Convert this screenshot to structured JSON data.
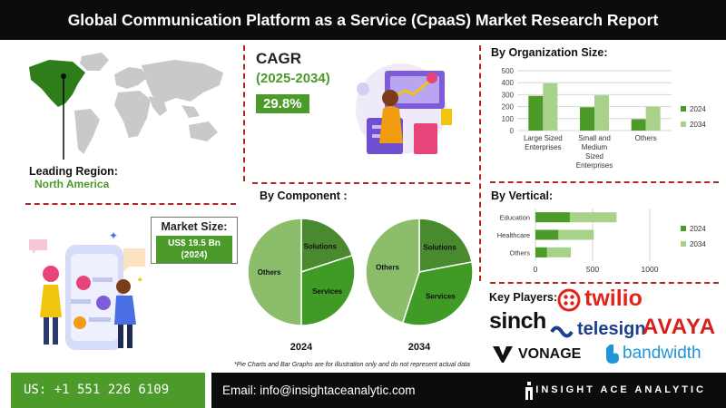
{
  "title": "Global Communication Platform as a Service (CpaaS) Market Research Report",
  "region": {
    "label": "Leading Region:",
    "value": "North America"
  },
  "cagr": {
    "label": "CAGR",
    "period": "(2025-2034)",
    "value": "29.8%"
  },
  "market_size": {
    "label": "Market Size:",
    "value_line1": "US$ 19.5 Bn",
    "value_line2": "(2024)"
  },
  "colors": {
    "dark_green": "#4b9a2a",
    "light_green": "#a8d18a",
    "black": "#0c0c0c",
    "divider_red": "#b32424"
  },
  "chart_data": [
    {
      "type": "bar",
      "title": "By Organization Size:",
      "categories": [
        "Large Sized Enterprises",
        "Small and Medium Sized Enterprises",
        "Others"
      ],
      "category_lines": [
        [
          "Large Sized",
          "Enterprises"
        ],
        [
          "Small and",
          "Medium",
          "Sized",
          "Enterprises"
        ],
        [
          "Others"
        ]
      ],
      "series": [
        {
          "name": "2024",
          "values": [
            290,
            195,
            95
          ]
        },
        {
          "name": "2034",
          "values": [
            395,
            295,
            200
          ]
        }
      ],
      "ylim": [
        0,
        500
      ],
      "yticks": [
        0,
        100,
        200,
        300,
        400,
        500
      ],
      "grid": true,
      "legend": "right"
    },
    {
      "type": "pie",
      "title": "By Component :",
      "subtitle": "2024",
      "slices": [
        {
          "label": "Solutions",
          "value": 20
        },
        {
          "label": "Services",
          "value": 30
        },
        {
          "label": "Others",
          "value": 50
        }
      ]
    },
    {
      "type": "pie",
      "subtitle": "2034",
      "slices": [
        {
          "label": "Solutions",
          "value": 22
        },
        {
          "label": "Services",
          "value": 33
        },
        {
          "label": "Others",
          "value": 45
        }
      ]
    },
    {
      "type": "bar",
      "orientation": "horizontal",
      "title": "By Vertical:",
      "categories": [
        "Education",
        "Healthcare",
        "Others"
      ],
      "series": [
        {
          "name": "2024",
          "values": [
            300,
            200,
            100
          ]
        },
        {
          "name": "2034",
          "values": [
            710,
            510,
            310
          ]
        }
      ],
      "xlim": [
        0,
        1000
      ],
      "xticks": [
        0,
        500,
        1000
      ],
      "grid": true,
      "legend": "right"
    }
  ],
  "key_players": {
    "title": "Key Players:",
    "companies": [
      "twilio",
      "sinch",
      "telesign",
      "AVAYA",
      "VONAGE",
      "bandwidth"
    ]
  },
  "footnote": "*Pie Charts and Bar Graphs are for illustration only and do not represent actual data",
  "footer": {
    "phone": "US: +1 551 226 6109",
    "email": "Email: info@insightaceanalytic.com",
    "brand": "INSIGHT ACE ANALYTIC"
  }
}
